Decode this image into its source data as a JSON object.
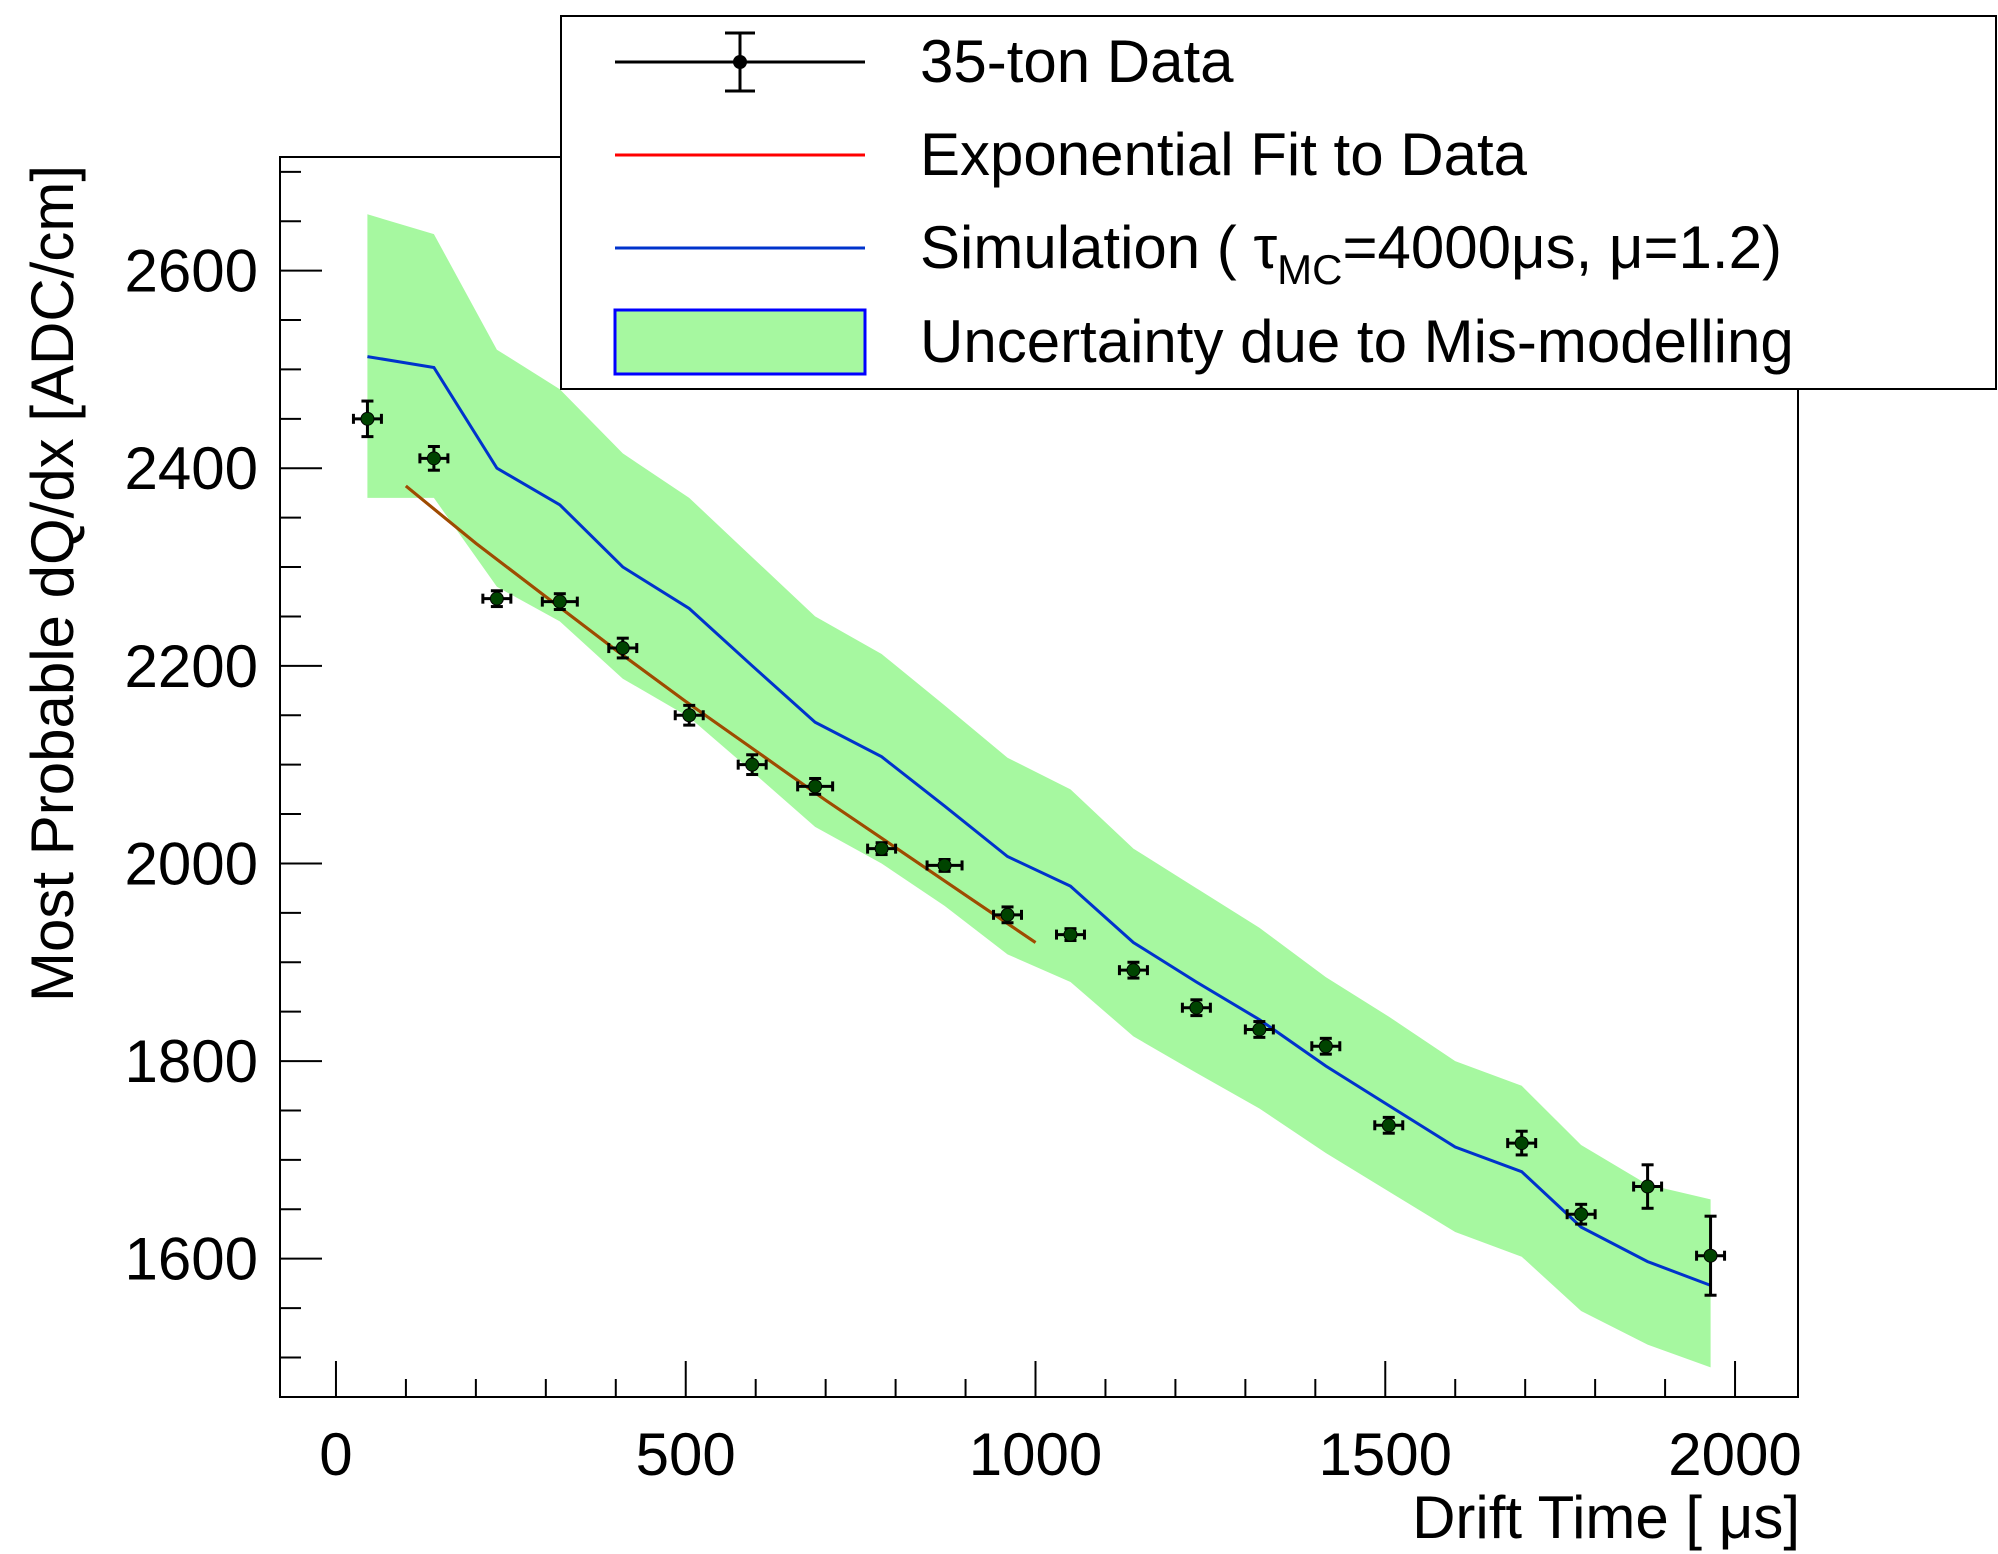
{
  "chart_data": {
    "type": "scatter",
    "title": "",
    "xlabel": "Drift Time [ μs]",
    "ylabel": "Most Probable dQ/dx [ADC/cm]",
    "xlim": [
      -80,
      2090
    ],
    "ylim": [
      1460,
      2715
    ],
    "x_ticks": [
      0,
      500,
      1000,
      1500,
      2000
    ],
    "x_tick_labels": [
      "0",
      "500",
      "1000",
      "1500",
      "2000"
    ],
    "y_ticks": [
      1600,
      1800,
      2000,
      2200,
      2400,
      2600
    ],
    "y_tick_labels": [
      "1600",
      "1800",
      "2000",
      "2200",
      "2400",
      "2600"
    ],
    "grid": false,
    "legend_position": "top-right",
    "legend": [
      {
        "kind": "errorbar",
        "label": "35-ton Data",
        "color": "#000000"
      },
      {
        "kind": "line",
        "label": "Exponential Fit to Data",
        "color": "#ff0000"
      },
      {
        "kind": "line",
        "label_prefix": "Simulation ( τ",
        "label_sub": "MC",
        "label_suffix": "=4000μs, μ=1.2)",
        "color": "#0033cc"
      },
      {
        "kind": "band",
        "label": "Uncertainty due to Mis-modelling",
        "color": "#a6f8a0",
        "edge": "#0000ff"
      }
    ],
    "series": [
      {
        "name": "35-ton Data",
        "kind": "errorbar",
        "color": "#000000",
        "overlay_color": "#005500",
        "x": [
          45,
          140,
          230,
          320,
          410,
          505,
          595,
          685,
          780,
          870,
          960,
          1050,
          1140,
          1230,
          1320,
          1415,
          1505,
          1695,
          1780,
          1875,
          1965
        ],
        "y": [
          2450,
          2410,
          2268,
          2265,
          2218,
          2150,
          2100,
          2078,
          2015,
          1998,
          1948,
          1928,
          1892,
          1854,
          1832,
          1815,
          1735,
          1717,
          1645,
          1673,
          1603
        ],
        "xerr": [
          20,
          20,
          20,
          25,
          20,
          20,
          20,
          25,
          20,
          25,
          20,
          20,
          20,
          20,
          20,
          20,
          20,
          20,
          20,
          20,
          20
        ],
        "yerr": [
          18,
          12,
          8,
          8,
          10,
          10,
          10,
          8,
          6,
          6,
          8,
          6,
          8,
          8,
          8,
          8,
          8,
          12,
          10,
          22,
          40
        ]
      },
      {
        "name": "Exponential Fit to Data",
        "kind": "line",
        "color": "#ff0000",
        "overlay_color": "#8b5a00",
        "x": [
          100,
          200,
          300,
          400,
          500,
          600,
          700,
          800,
          900,
          1000
        ],
        "y": [
          2382,
          2324,
          2270,
          2216,
          2164,
          2114,
          2064,
          2016,
          1968,
          1920
        ]
      },
      {
        "name": "Simulation",
        "kind": "line",
        "color": "#0033cc",
        "x": [
          45,
          140,
          230,
          320,
          410,
          505,
          595,
          685,
          780,
          870,
          960,
          1050,
          1140,
          1230,
          1320,
          1415,
          1505,
          1600,
          1695,
          1780,
          1875,
          1965
        ],
        "y": [
          2513,
          2502,
          2400,
          2363,
          2300,
          2258,
          2200,
          2143,
          2108,
          2058,
          2007,
          1977,
          1920,
          1880,
          1842,
          1795,
          1755,
          1713,
          1688,
          1632,
          1597,
          1573
        ]
      },
      {
        "name": "Uncertainty due to Mis-modelling",
        "kind": "band",
        "color": "#a6f8a0",
        "x": [
          45,
          140,
          230,
          320,
          410,
          505,
          595,
          685,
          780,
          870,
          960,
          1050,
          1140,
          1230,
          1320,
          1415,
          1505,
          1600,
          1695,
          1780,
          1875,
          1965
        ],
        "upper": [
          2657,
          2637,
          2520,
          2480,
          2415,
          2370,
          2310,
          2250,
          2212,
          2160,
          2107,
          2075,
          2015,
          1975,
          1935,
          1885,
          1845,
          1800,
          1775,
          1715,
          1675,
          1660
        ],
        "lower": [
          2370,
          2370,
          2280,
          2245,
          2187,
          2148,
          2093,
          2037,
          2000,
          1957,
          1908,
          1880,
          1825,
          1788,
          1752,
          1707,
          1668,
          1627,
          1602,
          1547,
          1513,
          1490
        ]
      }
    ]
  }
}
